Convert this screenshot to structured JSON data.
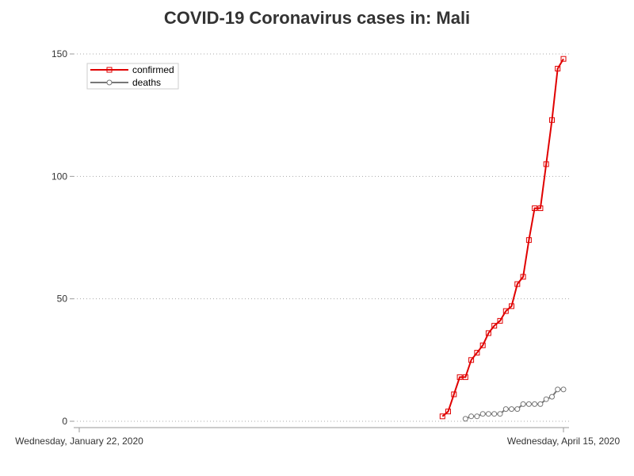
{
  "chart_data": {
    "type": "line",
    "title": "COVID-19 Coronavirus cases in: Mali",
    "x_start_label": "Wednesday, January 22, 2020",
    "x_end_label": "Wednesday, April 15, 2020",
    "xlim": [
      "2020-01-22",
      "2020-04-15"
    ],
    "ylim": [
      0,
      150
    ],
    "yticks": [
      "0",
      "50",
      "100",
      "150"
    ],
    "grid": "horizontal dotted",
    "legend_position": "top-left",
    "series": [
      {
        "name": "confirmed",
        "color": "#e00000",
        "marker": "square",
        "x": [
          "2020-03-25",
          "2020-03-26",
          "2020-03-27",
          "2020-03-28",
          "2020-03-29",
          "2020-03-30",
          "2020-03-31",
          "2020-04-01",
          "2020-04-02",
          "2020-04-03",
          "2020-04-04",
          "2020-04-05",
          "2020-04-06",
          "2020-04-07",
          "2020-04-08",
          "2020-04-09",
          "2020-04-10",
          "2020-04-11",
          "2020-04-12",
          "2020-04-13",
          "2020-04-14",
          "2020-04-15"
        ],
        "values": [
          2,
          4,
          11,
          18,
          18,
          25,
          28,
          31,
          36,
          39,
          41,
          45,
          47,
          56,
          59,
          74,
          87,
          87,
          105,
          123,
          144,
          148
        ]
      },
      {
        "name": "deaths",
        "color": "#777777",
        "marker": "circle",
        "x": [
          "2020-03-29",
          "2020-03-30",
          "2020-03-31",
          "2020-04-01",
          "2020-04-02",
          "2020-04-03",
          "2020-04-04",
          "2020-04-05",
          "2020-04-06",
          "2020-04-07",
          "2020-04-08",
          "2020-04-09",
          "2020-04-10",
          "2020-04-11",
          "2020-04-12",
          "2020-04-13",
          "2020-04-14",
          "2020-04-15"
        ],
        "values": [
          1,
          2,
          2,
          3,
          3,
          3,
          3,
          5,
          5,
          5,
          7,
          7,
          7,
          7,
          9,
          10,
          13,
          13
        ]
      }
    ]
  }
}
